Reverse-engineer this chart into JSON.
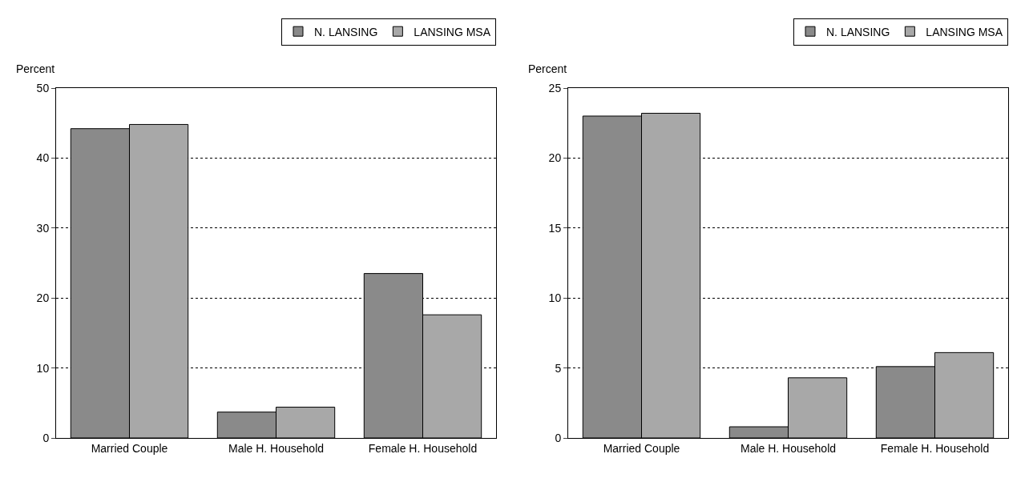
{
  "chart_data": [
    {
      "type": "bar",
      "ylabel": "Percent",
      "categories": [
        "Married Couple",
        "Male H. Household",
        "Female H. Household"
      ],
      "series": [
        {
          "name": "N. LANSING",
          "color": "#8a8a8a",
          "values": [
            44.2,
            3.7,
            23.5
          ]
        },
        {
          "name": "LANSING MSA",
          "color": "#a8a8a8",
          "values": [
            44.8,
            4.4,
            17.6
          ]
        }
      ],
      "ylim": [
        0,
        50
      ],
      "yticks": [
        0,
        10,
        20,
        30,
        40,
        50
      ],
      "grid": "y",
      "legend": "top right"
    },
    {
      "type": "bar",
      "ylabel": "Percent",
      "categories": [
        "Married Couple",
        "Male H. Household",
        "Female H. Household"
      ],
      "series": [
        {
          "name": "N. LANSING",
          "color": "#8a8a8a",
          "values": [
            23.0,
            0.8,
            5.1
          ]
        },
        {
          "name": "LANSING MSA",
          "color": "#a8a8a8",
          "values": [
            23.2,
            4.3,
            6.1
          ]
        }
      ],
      "ylim": [
        0,
        25
      ],
      "yticks": [
        0,
        5,
        10,
        15,
        20,
        25
      ],
      "grid": "y",
      "legend": "top right"
    }
  ]
}
